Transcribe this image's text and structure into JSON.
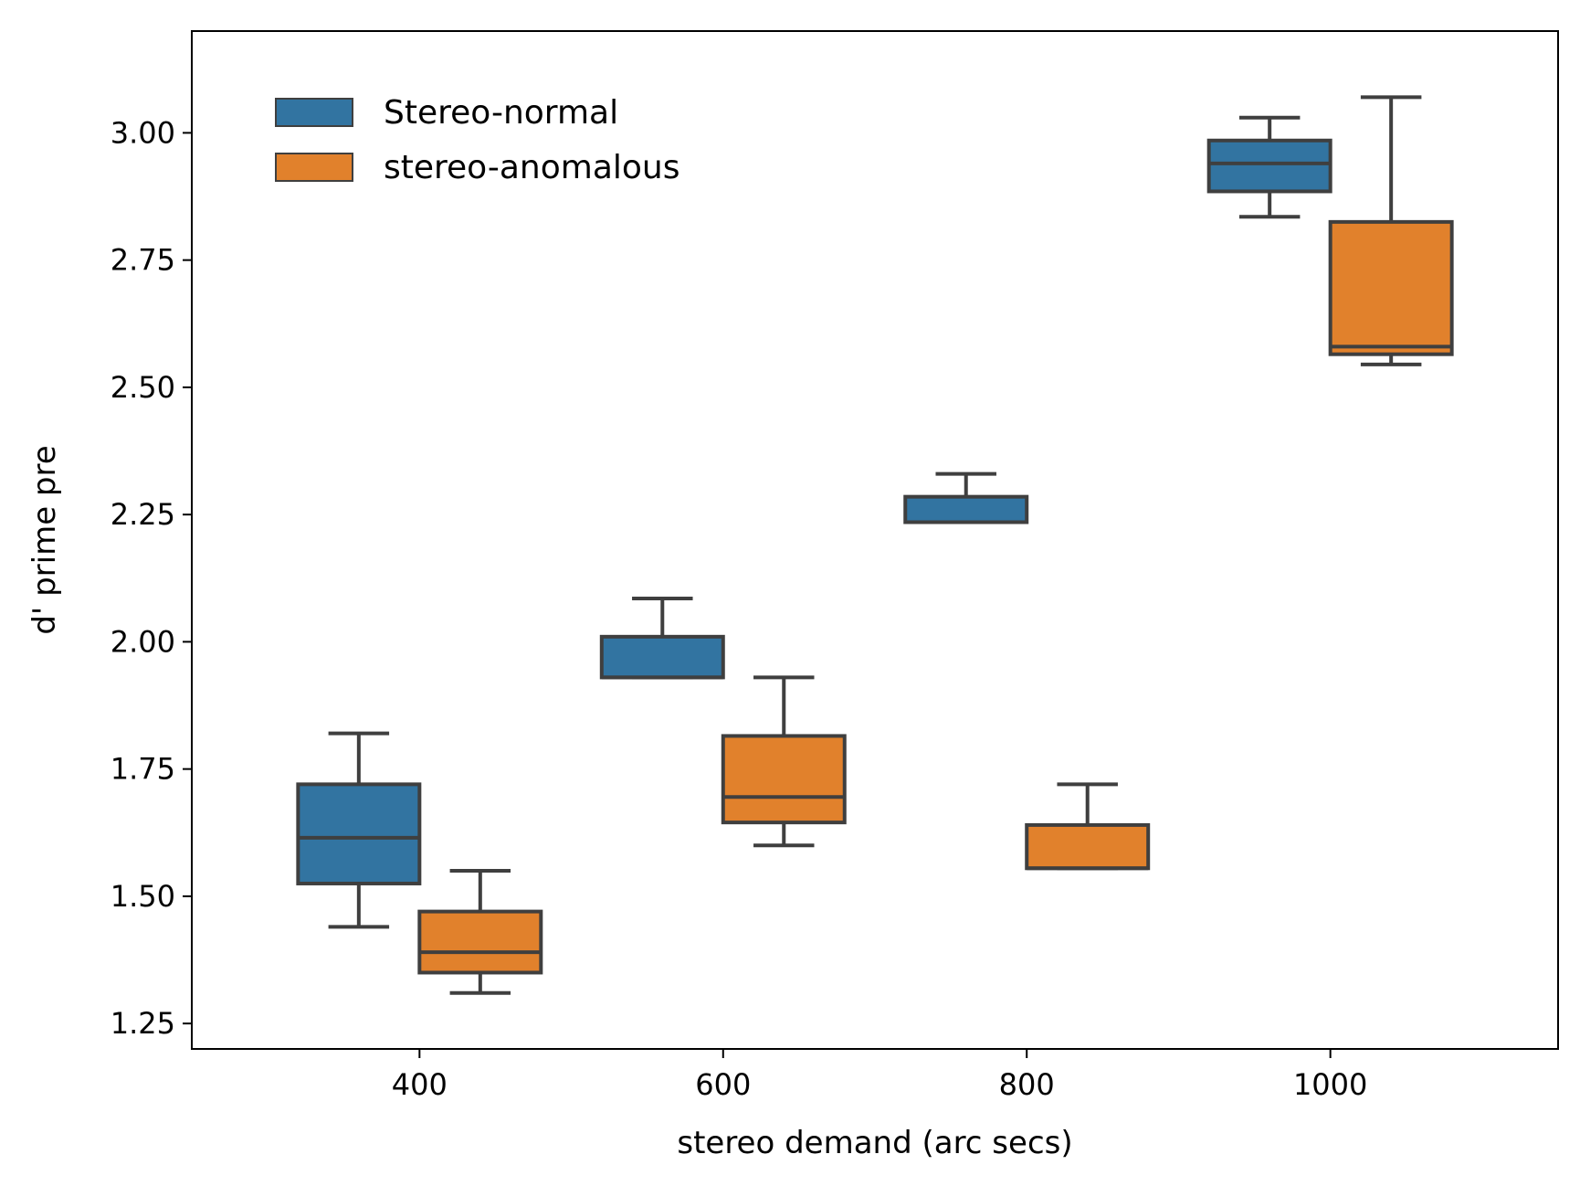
{
  "chart_data": {
    "type": "box",
    "title": "",
    "xlabel": "stereo demand (arc secs)",
    "ylabel": "d' prime pre",
    "categories": [
      "400",
      "600",
      "800",
      "1000"
    ],
    "ylim": [
      1.2,
      3.2
    ],
    "yticks": [
      "1.25",
      "1.50",
      "1.75",
      "2.00",
      "2.25",
      "2.50",
      "2.75",
      "3.00"
    ],
    "grid": false,
    "legend_position": "top-left",
    "series": [
      {
        "name": "Stereo-normal",
        "color": "#3274a1",
        "boxes": [
          {
            "category": "400",
            "whisker_low": 1.44,
            "q1": 1.525,
            "median": 1.615,
            "q3": 1.72,
            "whisker_high": 1.82
          },
          {
            "category": "600",
            "whisker_low": 1.93,
            "q1": 1.93,
            "median": 1.93,
            "q3": 2.01,
            "whisker_high": 2.085
          },
          {
            "category": "800",
            "whisker_low": 2.235,
            "q1": 2.235,
            "median": 2.235,
            "q3": 2.285,
            "whisker_high": 2.33
          },
          {
            "category": "1000",
            "whisker_low": 2.835,
            "q1": 2.885,
            "median": 2.94,
            "q3": 2.985,
            "whisker_high": 3.03
          }
        ]
      },
      {
        "name": "stereo-anomalous",
        "color": "#e1812c",
        "boxes": [
          {
            "category": "400",
            "whisker_low": 1.31,
            "q1": 1.35,
            "median": 1.39,
            "q3": 1.47,
            "whisker_high": 1.55
          },
          {
            "category": "600",
            "whisker_low": 1.6,
            "q1": 1.645,
            "median": 1.695,
            "q3": 1.815,
            "whisker_high": 1.93
          },
          {
            "category": "800",
            "whisker_low": 1.555,
            "q1": 1.555,
            "median": 1.555,
            "q3": 1.64,
            "whisker_high": 1.72
          },
          {
            "category": "1000",
            "whisker_low": 2.545,
            "q1": 2.565,
            "median": 2.58,
            "q3": 2.825,
            "whisker_high": 3.07
          }
        ]
      }
    ]
  }
}
